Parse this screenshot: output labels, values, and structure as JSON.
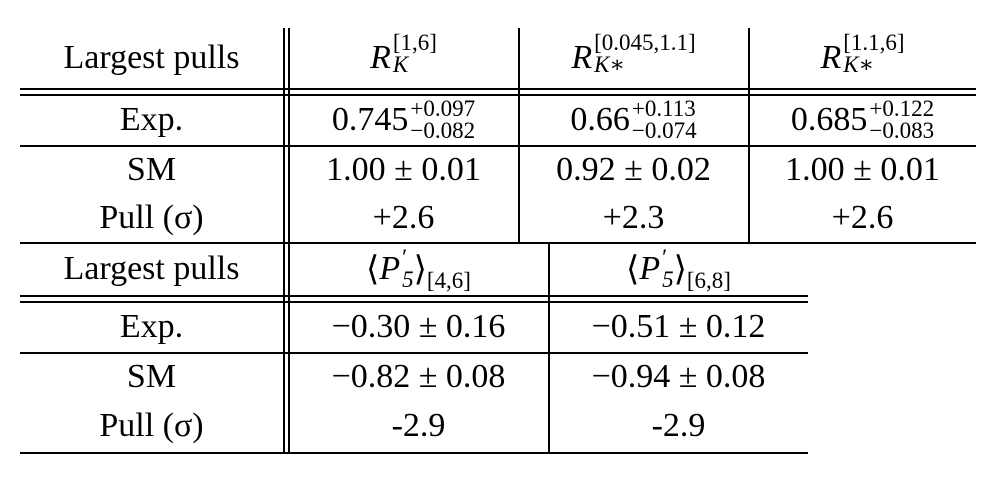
{
  "table1": {
    "header": [
      "Largest pulls",
      {
        "base": "R",
        "sup": "[1,6]",
        "sub": "K"
      },
      {
        "base": "R",
        "sup": "[0.045,1.1]",
        "sub": "K∗"
      },
      {
        "base": "R",
        "sup": "[1.1,6]",
        "sub": "K∗"
      }
    ],
    "rows": [
      [
        "Exp.",
        {
          "base": "0.745",
          "sup": "+0.097",
          "sub": "−0.082"
        },
        {
          "base": "0.66",
          "sup": "+0.113",
          "sub": "−0.074"
        },
        {
          "base": "0.685",
          "sup": "+0.122",
          "sub": "−0.083"
        }
      ],
      [
        "SM",
        "1.00 ± 0.01",
        "0.92 ± 0.02",
        "1.00 ± 0.01"
      ],
      [
        "Pull (σ)",
        "+2.6",
        "+2.3",
        "+2.6"
      ]
    ]
  },
  "table2": {
    "header": [
      "Largest pulls",
      {
        "open": "⟨",
        "base": "P",
        "sup": "′",
        "sub": "5",
        "close": "⟩",
        "outer_sub": "[4,6]"
      },
      {
        "open": "⟨",
        "base": "P",
        "sup": "′",
        "sub": "5",
        "close": "⟩",
        "outer_sub": "[6,8]"
      }
    ],
    "rows": [
      [
        "Exp.",
        "−0.30 ± 0.16",
        "−0.51 ± 0.12"
      ],
      [
        "SM",
        "−0.82 ± 0.08",
        "−0.94 ± 0.08"
      ],
      [
        "Pull (σ)",
        "-2.9",
        "-2.9"
      ]
    ]
  }
}
